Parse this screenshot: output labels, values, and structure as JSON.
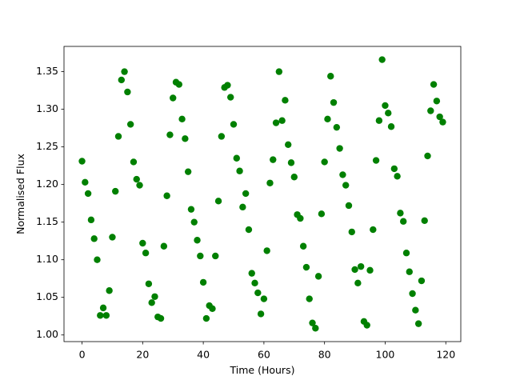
{
  "chart_data": {
    "type": "scatter",
    "xlabel": "Time (Hours)",
    "ylabel": "Normalised Flux",
    "xlim": [
      -5.95,
      124.95
    ],
    "ylim": [
      0.9912,
      1.3836
    ],
    "xticks": [
      0,
      20,
      40,
      60,
      80,
      100,
      120
    ],
    "yticks": [
      {
        "value": 1.0,
        "label": "1.00"
      },
      1.05,
      {
        "value": 1.1,
        "label": "1.10"
      },
      1.15,
      {
        "value": 1.2,
        "label": "1.20"
      },
      1.25,
      {
        "value": 1.3,
        "label": "1.30"
      },
      1.35
    ],
    "grid": false,
    "series": [
      {
        "color": "#008000",
        "x": [
          0,
          1,
          2,
          3,
          4,
          5,
          6,
          7,
          8,
          9,
          10,
          11,
          12,
          13,
          14,
          15,
          16,
          17,
          18,
          19,
          20,
          21,
          22,
          23,
          24,
          25,
          26,
          27,
          28,
          29,
          30,
          31,
          32,
          33,
          34,
          35,
          36,
          37,
          38,
          39,
          40,
          41,
          42,
          43,
          44,
          45,
          46,
          47,
          48,
          49,
          50,
          51,
          52,
          53,
          54,
          55,
          56,
          57,
          58,
          59,
          60,
          61,
          62,
          63,
          64,
          65,
          66,
          67,
          68,
          69,
          70,
          71,
          72,
          73,
          74,
          75,
          76,
          77,
          78,
          79,
          80,
          81,
          82,
          83,
          84,
          85,
          86,
          87,
          88,
          89,
          90,
          91,
          92,
          93,
          94,
          95,
          96,
          97,
          98,
          99,
          100,
          101,
          102,
          103,
          104,
          105,
          106,
          107,
          108,
          109,
          110,
          111,
          112,
          113,
          114,
          115,
          116,
          117,
          118,
          119
        ],
        "values": [
          1.231,
          1.203,
          1.188,
          1.153,
          1.128,
          1.1,
          1.026,
          1.036,
          1.026,
          1.059,
          1.13,
          1.191,
          1.264,
          1.339,
          1.35,
          1.323,
          1.28,
          1.23,
          1.207,
          1.199,
          1.122,
          1.109,
          1.068,
          1.043,
          1.051,
          1.024,
          1.022,
          1.118,
          1.185,
          1.266,
          1.315,
          1.336,
          1.333,
          1.287,
          1.261,
          1.217,
          1.167,
          1.15,
          1.126,
          1.105,
          1.07,
          1.022,
          1.039,
          1.035,
          1.105,
          1.178,
          1.264,
          1.329,
          1.332,
          1.316,
          1.28,
          1.235,
          1.218,
          1.17,
          1.188,
          1.14,
          1.082,
          1.069,
          1.056,
          1.028,
          1.048,
          1.112,
          1.202,
          1.233,
          1.282,
          1.35,
          1.285,
          1.312,
          1.253,
          1.229,
          1.21,
          1.16,
          1.155,
          1.118,
          1.09,
          1.048,
          1.016,
          1.009,
          1.078,
          1.161,
          1.23,
          1.287,
          1.344,
          1.309,
          1.276,
          1.248,
          1.213,
          1.199,
          1.172,
          1.137,
          1.087,
          1.069,
          1.091,
          1.018,
          1.013,
          1.086,
          1.14,
          1.232,
          1.285,
          1.366,
          1.305,
          1.295,
          1.277,
          1.221,
          1.211,
          1.162,
          1.151,
          1.109,
          1.084,
          1.055,
          1.033,
          1.015,
          1.072,
          1.152,
          1.238,
          1.298,
          1.333,
          1.311,
          1.29,
          1.283
        ]
      }
    ]
  }
}
